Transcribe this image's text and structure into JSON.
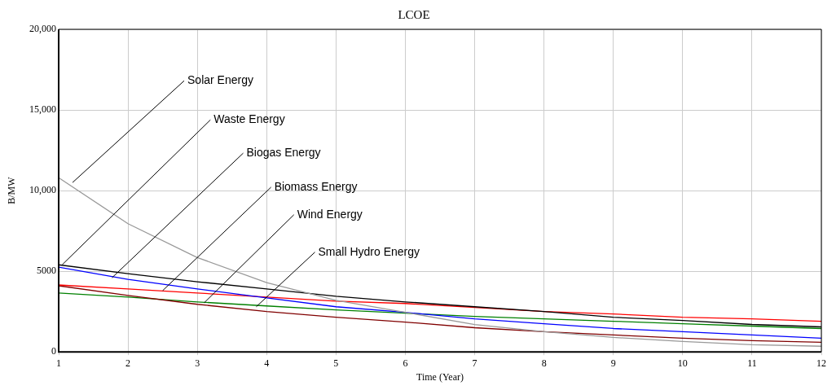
{
  "chart_data": {
    "type": "line",
    "title": "LCOE",
    "xlabel": "Time (Year)",
    "ylabel": "B/MW",
    "x": [
      1,
      2,
      3,
      4,
      5,
      6,
      7,
      8,
      9,
      10,
      11,
      12
    ],
    "series": [
      {
        "color": "#999999",
        "values": [
          10800,
          7950,
          5850,
          4300,
          3200,
          2450,
          1700,
          1250,
          900,
          650,
          450,
          350
        ]
      },
      {
        "color": "#000000",
        "values": [
          5400,
          4850,
          4350,
          3900,
          3450,
          3100,
          2800,
          2500,
          2150,
          1950,
          1700,
          1550
        ]
      },
      {
        "color": "#0000ff",
        "values": [
          5250,
          4500,
          3900,
          3350,
          2800,
          2450,
          2050,
          1750,
          1450,
          1250,
          1050,
          850
        ]
      },
      {
        "color": "#ff0000",
        "values": [
          4150,
          3900,
          3650,
          3400,
          3150,
          3000,
          2750,
          2500,
          2350,
          2150,
          2050,
          1900
        ]
      },
      {
        "color": "#800000",
        "values": [
          4100,
          3500,
          2950,
          2500,
          2150,
          1850,
          1500,
          1250,
          1050,
          850,
          700,
          600
        ]
      },
      {
        "color": "#008000",
        "values": [
          3650,
          3400,
          3100,
          2850,
          2600,
          2400,
          2200,
          2050,
          1900,
          1750,
          1600,
          1450
        ]
      }
    ],
    "xlim": [
      1,
      12
    ],
    "xticks": [
      1,
      2,
      3,
      4,
      5,
      6,
      7,
      8,
      9,
      10,
      11,
      12
    ],
    "ylim": [
      0,
      20000
    ],
    "yticks": [
      0,
      5000,
      {
        "value": 10000,
        "label": "10,000"
      },
      {
        "value": 15000,
        "label": "15,000"
      },
      {
        "value": 20000,
        "label": "20,000"
      }
    ],
    "grid": true,
    "legend": false,
    "marker": "none",
    "line_style": "solid",
    "annotations": [
      {
        "text": "Solar Energy",
        "x": 1.2,
        "y": 10500
      },
      {
        "text": "Waste Energy",
        "x": 1.05,
        "y": 5400
      },
      {
        "text": "Biogas Energy",
        "x": 1.77,
        "y": 4600
      },
      {
        "text": "Biomass Energy",
        "x": 2.5,
        "y": 3800
      },
      {
        "text": "Wind Energy",
        "x": 3.1,
        "y": 3050
      },
      {
        "text": "Small Hydro Energy",
        "x": 3.85,
        "y": 2800
      }
    ]
  }
}
